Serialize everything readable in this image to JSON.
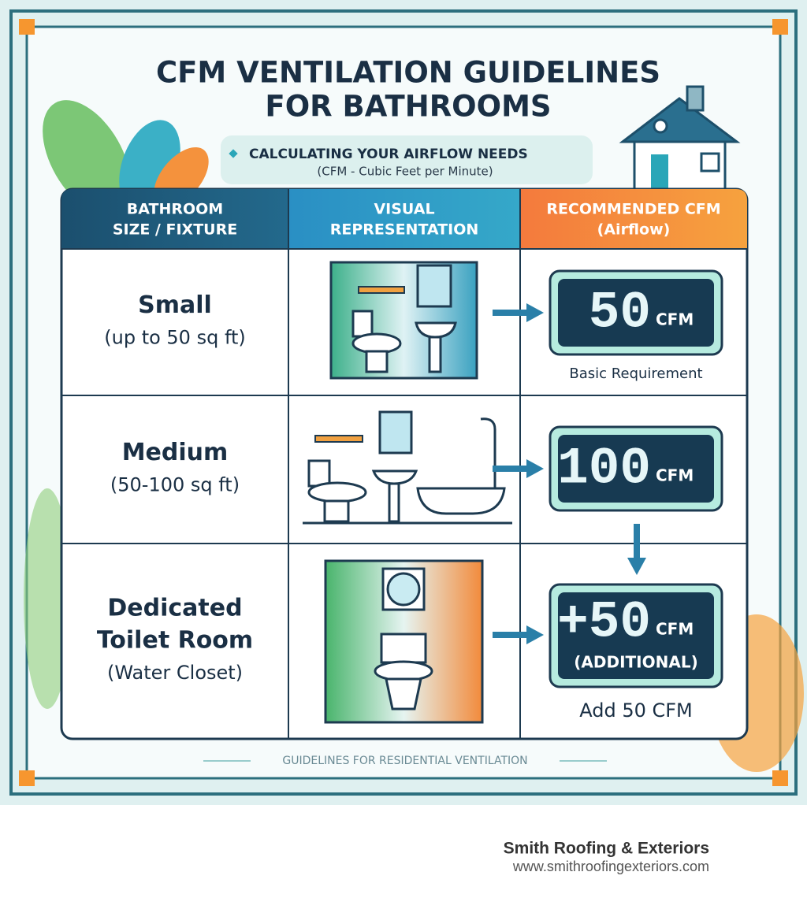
{
  "header": {
    "title_lines": [
      "CFM VENTILATION GUIDELINES",
      "FOR BATHROOMS"
    ],
    "subtitle": "CALCULATING YOUR AIRFLOW NEEDS",
    "subtitle_note": "(CFM - Cubic Feet per Minute)"
  },
  "table": {
    "headers": [
      [
        "BATHROOM",
        "SIZE / FIXTURE"
      ],
      [
        "VISUAL",
        "REPRESENTATION"
      ],
      [
        "RECOMMENDED CFM",
        "(Airflow)"
      ]
    ],
    "rows": [
      {
        "size_lines": [
          "Small"
        ],
        "detail": "(up to 50 sq ft)",
        "cfm": "50",
        "unit": "CFM",
        "note": "Basic Requirement"
      },
      {
        "size_lines": [
          "Medium"
        ],
        "detail": "(50-100 sq ft)",
        "cfm": "100",
        "unit": "CFM"
      },
      {
        "size_lines": [
          "Dedicated",
          "Toilet Room"
        ],
        "detail": "(Water Closet)",
        "cfm": "+50",
        "unit": "CFM",
        "qualifier": "(ADDITIONAL)",
        "note": "Add 50 CFM"
      }
    ]
  },
  "footer": {
    "caption": "GUIDELINES FOR RESIDENTIAL VENTILATION"
  },
  "brand": {
    "name": "Smith Roofing & Exteriors",
    "url": "www.smithroofingexteriors.com"
  }
}
